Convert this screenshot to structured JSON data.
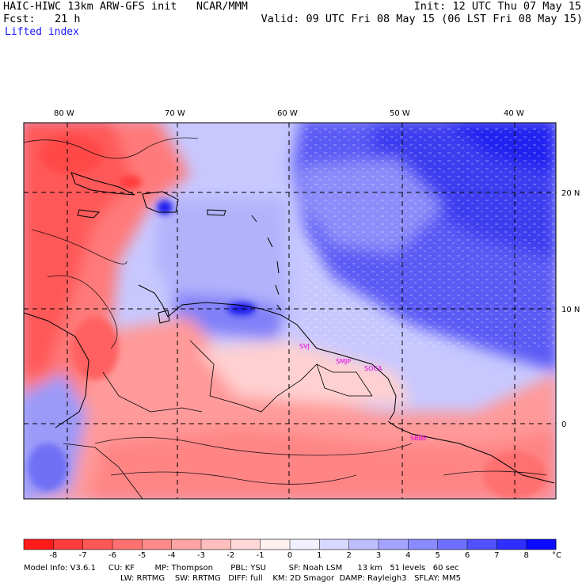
{
  "header": {
    "title_left": "HAIC-HIWC 13km ARW-GFS init   NCAR/MMM",
    "fcst_left": "Fcst:   21 h",
    "field": "Lifted index",
    "init_right": "Init: 12 UTC Thu 07 May 15",
    "valid_right": "Valid: 09 UTC Fri 08 May 15 (06 LST Fri 08 May 15)"
  },
  "map": {
    "lon_labels": [
      "80 W",
      "70 W",
      "60 W",
      "50 W",
      "40 W"
    ],
    "lat_labels": [
      "20 N",
      "10 N",
      "0"
    ],
    "stations": [
      "SVJ",
      "SMJP",
      "SOCA",
      "SBBE"
    ]
  },
  "colorbar": {
    "unit": "°C",
    "ticks": [
      "-8",
      "-7",
      "-6",
      "-5",
      "-4",
      "-3",
      "-2",
      "-1",
      "0",
      "1",
      "2",
      "3",
      "4",
      "5",
      "6",
      "7",
      "8"
    ],
    "colors": [
      "#ff1a1a",
      "#ff3b3b",
      "#ff5656",
      "#ff7070",
      "#ff8a8a",
      "#ffa4a4",
      "#ffbebe",
      "#ffd8d8",
      "#fff0f0",
      "#f0f0ff",
      "#d8d8ff",
      "#bebeff",
      "#a4a4ff",
      "#8a8aff",
      "#6f6fff",
      "#5050ff",
      "#2e2eff",
      "#0a0aff"
    ]
  },
  "model_info": {
    "line1": "Model Info: V3.6.1     CU: KF        MP: Thompson       PBL: YSU         SF: Noah LSM      13 km   51 levels   60 sec",
    "line2": "LW: RRTMG    SW: RRTMG   DIFF: full    KM: 2D Smagor  DAMP: Rayleigh3   SFLAY: MM5"
  }
}
